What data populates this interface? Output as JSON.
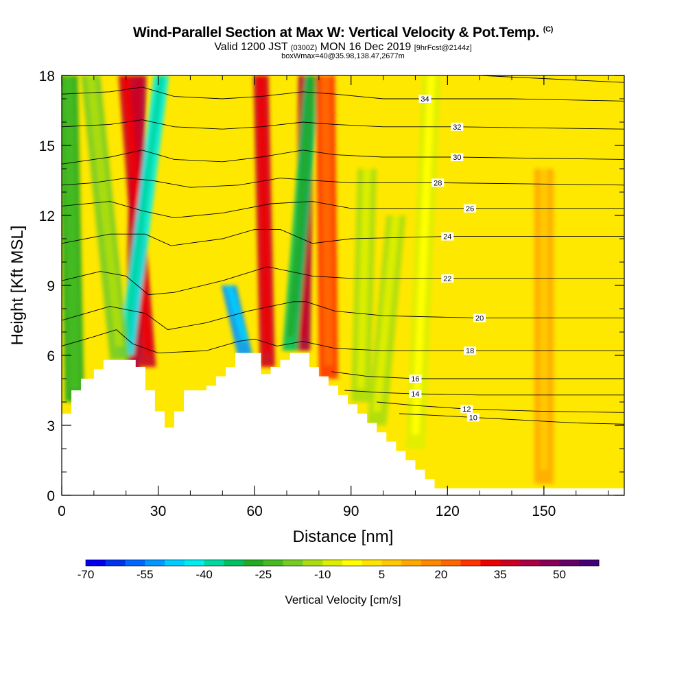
{
  "header": {
    "title_main": "Wind-Parallel Section at Max W: Vertical Velocity & Pot.Temp.",
    "title_unit": "(C)",
    "valid_prefix": "Valid 1200 JST",
    "valid_z": "(0300Z)",
    "valid_date": "MON 16 Dec 2019",
    "valid_fcst": "[9hrFcst@2144z]",
    "box_info": "boxWmax=40@35.98,138.47,2677m"
  },
  "chart_data": {
    "type": "contour",
    "xlabel": "Distance [nm]",
    "ylabel": "Height [Kft MSL]",
    "xlim": [
      0,
      175
    ],
    "ylim": [
      0,
      18
    ],
    "xticks": [
      "0",
      "30",
      "60",
      "90",
      "120",
      "150"
    ],
    "yticks": [
      "0",
      "3",
      "6",
      "9",
      "12",
      "15",
      "18"
    ],
    "xtick_values": [
      0,
      30,
      60,
      90,
      120,
      150
    ],
    "ytick_values": [
      0,
      3,
      6,
      9,
      12,
      15,
      18
    ],
    "terrain": [
      [
        0,
        3.5
      ],
      [
        3,
        3.5
      ],
      [
        3,
        4.5
      ],
      [
        6,
        4.5
      ],
      [
        6,
        5
      ],
      [
        10,
        5
      ],
      [
        10,
        5.4
      ],
      [
        13,
        5.4
      ],
      [
        13,
        5.8
      ],
      [
        23,
        5.8
      ],
      [
        23,
        5.5
      ],
      [
        26,
        5.5
      ],
      [
        26,
        4.5
      ],
      [
        29,
        4.5
      ],
      [
        29,
        3.6
      ],
      [
        32,
        3.6
      ],
      [
        32,
        2.9
      ],
      [
        35,
        2.9
      ],
      [
        35,
        3.6
      ],
      [
        38,
        3.6
      ],
      [
        38,
        4.5
      ],
      [
        45,
        4.5
      ],
      [
        45,
        4.7
      ],
      [
        48,
        4.7
      ],
      [
        48,
        5.1
      ],
      [
        51,
        5.1
      ],
      [
        51,
        5.5
      ],
      [
        54,
        5.5
      ],
      [
        54,
        6.1
      ],
      [
        62,
        6.1
      ],
      [
        62,
        5.2
      ],
      [
        65,
        5.2
      ],
      [
        65,
        5.5
      ],
      [
        68,
        5.5
      ],
      [
        68,
        5.8
      ],
      [
        71,
        5.8
      ],
      [
        71,
        6.1
      ],
      [
        77,
        6.1
      ],
      [
        77,
        5.5
      ],
      [
        80,
        5.5
      ],
      [
        80,
        5.1
      ],
      [
        83,
        5.1
      ],
      [
        83,
        4.7
      ],
      [
        86,
        4.7
      ],
      [
        86,
        4.3
      ],
      [
        89,
        4.3
      ],
      [
        89,
        3.9
      ],
      [
        92,
        3.9
      ],
      [
        92,
        3.5
      ],
      [
        95,
        3.5
      ],
      [
        95,
        3.1
      ],
      [
        98,
        3.1
      ],
      [
        98,
        2.7
      ],
      [
        101,
        2.7
      ],
      [
        101,
        2.3
      ],
      [
        104,
        2.3
      ],
      [
        104,
        1.9
      ],
      [
        107,
        1.9
      ],
      [
        107,
        1.5
      ],
      [
        110,
        1.5
      ],
      [
        110,
        1.1
      ],
      [
        113,
        1.1
      ],
      [
        113,
        0.7
      ],
      [
        116,
        0.7
      ],
      [
        116,
        0.3
      ],
      [
        175,
        0.3
      ]
    ],
    "velocity_features": [
      {
        "x": 22,
        "top_x": 24,
        "y0": 4.5,
        "y1": 18,
        "w": 40
      },
      {
        "x": 27,
        "top_x": 20,
        "y0": 5.5,
        "y1": 18,
        "w": 35
      },
      {
        "x": 20,
        "top_x": 31,
        "y0": 6,
        "y1": 18,
        "w": -45
      },
      {
        "x": 18,
        "top_x": 9,
        "y0": 5.8,
        "y1": 18,
        "w": -20
      },
      {
        "x": 4,
        "top_x": 2,
        "y0": 4,
        "y1": 18,
        "w": -30
      },
      {
        "x": 57,
        "top_x": 52,
        "y0": 6,
        "y1": 9,
        "w": -55
      },
      {
        "x": 64,
        "top_x": 62,
        "y0": 5.5,
        "y1": 18,
        "w": 35
      },
      {
        "x": 75,
        "top_x": 76,
        "y0": 6.2,
        "y1": 18,
        "w": 40
      },
      {
        "x": 71,
        "top_x": 78,
        "y0": 6.2,
        "y1": 18,
        "w": -35
      },
      {
        "x": 83,
        "top_x": 82,
        "y0": 5,
        "y1": 18,
        "w": 25
      },
      {
        "x": 93,
        "top_x": 95,
        "y0": 4,
        "y1": 14,
        "w": -15
      },
      {
        "x": 98,
        "top_x": 104,
        "y0": 3,
        "y1": 12,
        "w": -12
      },
      {
        "x": 110,
        "top_x": 115,
        "y0": 2,
        "y1": 18,
        "w": -10
      },
      {
        "x": 150,
        "top_x": 150,
        "y0": 0.5,
        "y1": 14,
        "w": 10
      }
    ],
    "theta_contours": [
      {
        "level": 10,
        "label": "10",
        "label_x": 128,
        "pts": [
          [
            105,
            3.5
          ],
          [
            120,
            3.4
          ],
          [
            140,
            3.25
          ],
          [
            160,
            3.1
          ],
          [
            175,
            3.05
          ]
        ]
      },
      {
        "level": 12,
        "label": "12",
        "label_x": 126,
        "pts": [
          [
            98,
            4.0
          ],
          [
            110,
            3.85
          ],
          [
            126,
            3.7
          ],
          [
            150,
            3.6
          ],
          [
            175,
            3.55
          ]
        ]
      },
      {
        "level": 14,
        "label": "14",
        "label_x": 110,
        "pts": [
          [
            88,
            4.5
          ],
          [
            100,
            4.4
          ],
          [
            110,
            4.35
          ],
          [
            130,
            4.3
          ],
          [
            160,
            4.3
          ],
          [
            175,
            4.3
          ]
        ]
      },
      {
        "level": 16,
        "label": "16",
        "label_x": 110,
        "pts": [
          [
            84,
            5.3
          ],
          [
            95,
            5.1
          ],
          [
            110,
            5.0
          ],
          [
            140,
            5.0
          ],
          [
            175,
            5.0
          ]
        ]
      },
      {
        "level": 18,
        "label": "18",
        "label_x": 127,
        "pts": [
          [
            0,
            6.4
          ],
          [
            10,
            6.8
          ],
          [
            17,
            7.1
          ],
          [
            22,
            6.5
          ],
          [
            30,
            6.1
          ],
          [
            45,
            6.2
          ],
          [
            55,
            6.6
          ],
          [
            60,
            6.7
          ],
          [
            67,
            6.4
          ],
          [
            75,
            6.6
          ],
          [
            85,
            6.3
          ],
          [
            100,
            6.2
          ],
          [
            127,
            6.2
          ],
          [
            150,
            6.2
          ],
          [
            175,
            6.2
          ]
        ]
      },
      {
        "level": 20,
        "label": "20",
        "label_x": 130,
        "pts": [
          [
            0,
            7.5
          ],
          [
            15,
            8.1
          ],
          [
            26,
            7.8
          ],
          [
            33,
            7.1
          ],
          [
            45,
            7.4
          ],
          [
            58,
            7.9
          ],
          [
            72,
            8.3
          ],
          [
            76,
            8.3
          ],
          [
            85,
            7.9
          ],
          [
            100,
            7.7
          ],
          [
            130,
            7.6
          ],
          [
            175,
            7.6
          ]
        ]
      },
      {
        "level": 22,
        "label": "22",
        "label_x": 120,
        "pts": [
          [
            0,
            9.2
          ],
          [
            12,
            9.6
          ],
          [
            20,
            9.4
          ],
          [
            27,
            8.6
          ],
          [
            35,
            8.7
          ],
          [
            50,
            9.2
          ],
          [
            64,
            9.8
          ],
          [
            78,
            9.4
          ],
          [
            90,
            9.3
          ],
          [
            120,
            9.3
          ],
          [
            175,
            9.3
          ]
        ]
      },
      {
        "level": 24,
        "label": "24",
        "label_x": 120,
        "pts": [
          [
            0,
            10.8
          ],
          [
            15,
            11.2
          ],
          [
            26,
            11.2
          ],
          [
            34,
            10.7
          ],
          [
            50,
            11.0
          ],
          [
            60,
            11.4
          ],
          [
            68,
            11.4
          ],
          [
            78,
            10.8
          ],
          [
            90,
            11.0
          ],
          [
            120,
            11.1
          ],
          [
            175,
            11.1
          ]
        ]
      },
      {
        "level": 26,
        "label": "26",
        "label_x": 127,
        "pts": [
          [
            0,
            12.4
          ],
          [
            15,
            12.6
          ],
          [
            25,
            12.2
          ],
          [
            35,
            11.9
          ],
          [
            50,
            12.1
          ],
          [
            65,
            12.5
          ],
          [
            78,
            12.6
          ],
          [
            90,
            12.3
          ],
          [
            127,
            12.3
          ],
          [
            175,
            12.3
          ]
        ]
      },
      {
        "level": 28,
        "label": "28",
        "label_x": 117,
        "pts": [
          [
            0,
            13.3
          ],
          [
            10,
            13.4
          ],
          [
            20,
            13.6
          ],
          [
            28,
            13.5
          ],
          [
            40,
            13.2
          ],
          [
            55,
            13.3
          ],
          [
            68,
            13.6
          ],
          [
            78,
            13.5
          ],
          [
            90,
            13.4
          ],
          [
            117,
            13.4
          ],
          [
            175,
            13.3
          ]
        ]
      },
      {
        "level": 30,
        "label": "30",
        "label_x": 123,
        "pts": [
          [
            0,
            14.2
          ],
          [
            15,
            14.5
          ],
          [
            25,
            14.8
          ],
          [
            35,
            14.4
          ],
          [
            50,
            14.3
          ],
          [
            62,
            14.5
          ],
          [
            75,
            14.8
          ],
          [
            85,
            14.6
          ],
          [
            100,
            14.5
          ],
          [
            123,
            14.5
          ],
          [
            175,
            14.4
          ]
        ]
      },
      {
        "level": 32,
        "label": "32",
        "label_x": 123,
        "pts": [
          [
            0,
            15.8
          ],
          [
            15,
            15.9
          ],
          [
            25,
            16.1
          ],
          [
            35,
            15.8
          ],
          [
            50,
            15.7
          ],
          [
            62,
            15.8
          ],
          [
            75,
            16.0
          ],
          [
            85,
            15.9
          ],
          [
            100,
            15.8
          ],
          [
            123,
            15.8
          ],
          [
            175,
            15.7
          ]
        ]
      },
      {
        "level": 34,
        "label": "34",
        "label_x": 113,
        "pts": [
          [
            0,
            17.2
          ],
          [
            15,
            17.3
          ],
          [
            25,
            17.5
          ],
          [
            35,
            17.1
          ],
          [
            50,
            17.0
          ],
          [
            62,
            17.1
          ],
          [
            75,
            17.3
          ],
          [
            85,
            17.2
          ],
          [
            100,
            17.0
          ],
          [
            113,
            17.0
          ],
          [
            140,
            17.0
          ],
          [
            175,
            16.9
          ]
        ]
      },
      {
        "level": 36,
        "label": "",
        "label_x": 0,
        "pts": [
          [
            0,
            18.4
          ],
          [
            40,
            18.3
          ],
          [
            90,
            18.2
          ],
          [
            130,
            18.0
          ],
          [
            175,
            17.7
          ]
        ]
      }
    ],
    "colorbar": {
      "label": "Vertical Velocity [cm/s]",
      "tick_labels": [
        "-70",
        "-55",
        "-40",
        "-25",
        "-10",
        "5",
        "20",
        "35",
        "50"
      ],
      "tick_values": [
        -70,
        -55,
        -40,
        -25,
        -10,
        5,
        20,
        35,
        50
      ],
      "min": -70,
      "max": 60,
      "step": 5,
      "colors": [
        "#0000ee",
        "#0033ee",
        "#0066ff",
        "#0099ff",
        "#00ccff",
        "#00eeee",
        "#00d8a0",
        "#00c060",
        "#22aa22",
        "#44bb22",
        "#77cc22",
        "#aadd11",
        "#ddee00",
        "#ffff00",
        "#ffe400",
        "#ffc800",
        "#ffa800",
        "#ff8800",
        "#ff6600",
        "#ff3300",
        "#ee0000",
        "#cc0022",
        "#aa0044",
        "#880055",
        "#660066",
        "#440077"
      ]
    }
  }
}
